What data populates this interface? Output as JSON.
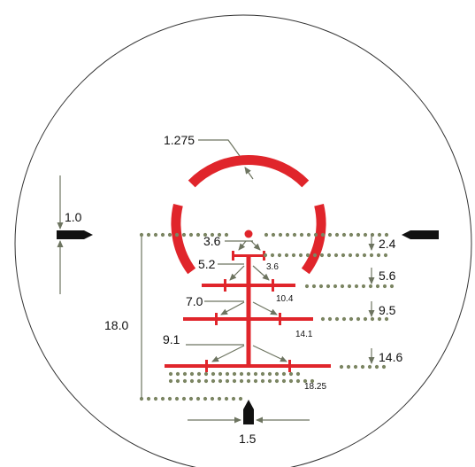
{
  "colors": {
    "reticle_red": "#e0252b",
    "dot_green": "#7b8562",
    "annotation_gray": "#6d7460",
    "post_black": "#111111",
    "outline": "#333333"
  },
  "labels": {
    "horseshoe_diameter": "1.275",
    "post_gap": "1.0",
    "dot_span": "18.0",
    "bottom_post_gap": "1.5",
    "hold_1_left": "3.6",
    "hold_1_right": "3.6",
    "hold_2_left": "5.2",
    "hold_2_right": "10.4",
    "hold_3_left": "7.0",
    "hold_3_right": "14.1",
    "hold_4_left": "9.1",
    "hold_4_right": "18.25",
    "right_1": "2.4",
    "right_2": "5.6",
    "right_3": "9.5",
    "right_4": "14.6"
  },
  "icons": {
    "top_arrow": "arrow-down-icon",
    "bottom_arrow": "arrow-up-icon",
    "left_post": "post-right-pointing-icon",
    "right_post": "post-left-pointing-icon",
    "bottom_post": "post-up-pointing-icon"
  }
}
